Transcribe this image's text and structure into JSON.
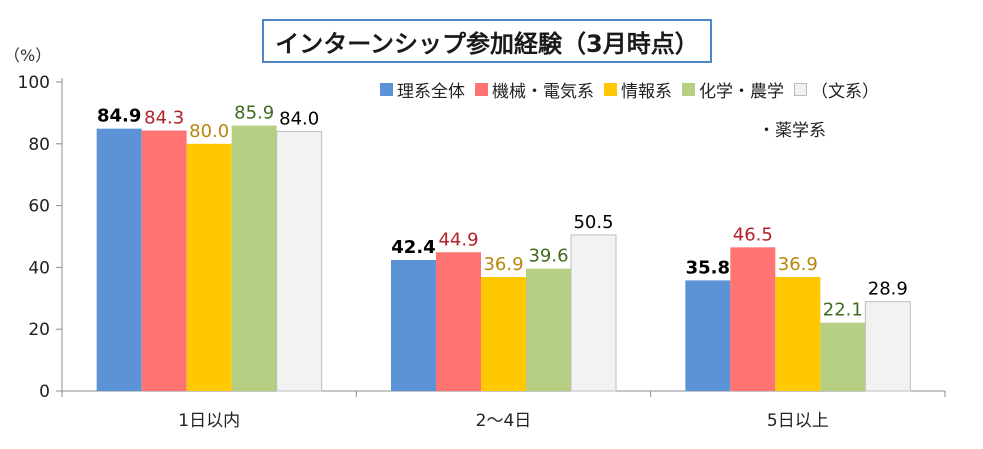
{
  "chart_data": {
    "type": "bar",
    "title": "インターンシップ参加経験（3月時点）",
    "unit_label": "（%）",
    "categories": [
      "1日以内",
      "2〜4日",
      "5日以上"
    ],
    "ylim": [
      0,
      100
    ],
    "yticks": [
      "0",
      "20",
      "40",
      "60",
      "80",
      "100"
    ],
    "grid": false,
    "legend_position": "top-right",
    "series": [
      {
        "name": "理系全体",
        "values": [
          84.9,
          42.4,
          35.8
        ],
        "labels": [
          "84.9",
          "42.4",
          "35.8"
        ],
        "color": "#5b93d6",
        "label_color": "#000000",
        "label_bold": true
      },
      {
        "name": "機械・電気系",
        "values": [
          84.3,
          44.9,
          46.5
        ],
        "labels": [
          "84.3",
          "44.9",
          "46.5"
        ],
        "color": "#ff7472",
        "label_color": "#b3202a",
        "label_bold": false
      },
      {
        "name": "情報系",
        "values": [
          80.0,
          36.9,
          36.9
        ],
        "labels": [
          "80.0",
          "36.9",
          "36.9"
        ],
        "color": "#ffc800",
        "label_color": "#b8860b",
        "label_bold": false
      },
      {
        "name": "化学・農学・薬学系",
        "legend_line1": "化学・農学",
        "legend_line2": "・薬学系",
        "values": [
          85.9,
          39.6,
          22.1
        ],
        "labels": [
          "85.9",
          "39.6",
          "22.1"
        ],
        "color": "#b7cf82",
        "label_color": "#3e6b1f",
        "label_bold": false
      },
      {
        "name": "（文系）",
        "values": [
          84.0,
          50.5,
          28.9
        ],
        "labels": [
          "84.0",
          "50.5",
          "28.9"
        ],
        "color": "#f2f2f2",
        "label_color": "#000000",
        "label_bold": false
      }
    ]
  }
}
